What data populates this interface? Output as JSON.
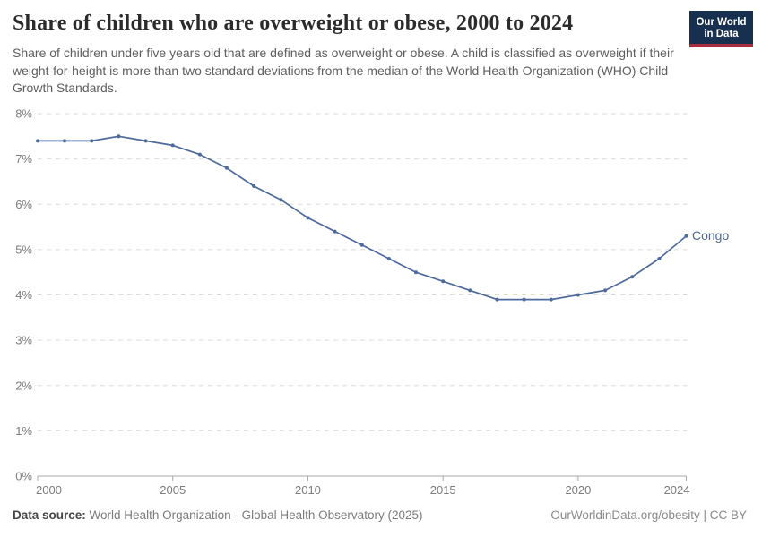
{
  "header": {
    "title": "Share of children who are overweight or obese, 2000 to 2024",
    "subtitle": "Share of children under five years old that are defined as overweight or obese. A child is classified as overweight if their weight-for-height is more than two standard deviations from the median of the World Health Organization (WHO) Child Growth Standards.",
    "logo": {
      "line1": "Our World",
      "line2": "in Data"
    }
  },
  "colors": {
    "line": "#4C6A9C",
    "grid": "#dcdcdc",
    "axis": "#a8a8a8",
    "tick_label": "#7d7d7d",
    "logo_bg": "#17304f",
    "logo_accent": "#a82d3d"
  },
  "chart_data": {
    "type": "line",
    "title": "Share of children who are overweight or obese, 2000 to 2024",
    "xlabel": "",
    "ylabel": "",
    "x": [
      2000,
      2001,
      2002,
      2003,
      2004,
      2005,
      2006,
      2007,
      2008,
      2009,
      2010,
      2011,
      2012,
      2013,
      2014,
      2015,
      2016,
      2017,
      2018,
      2019,
      2020,
      2021,
      2022,
      2023,
      2024
    ],
    "series": [
      {
        "name": "Congo",
        "color": "#4C6A9C",
        "values": [
          7.4,
          7.4,
          7.4,
          7.5,
          7.4,
          7.3,
          7.1,
          6.8,
          6.4,
          6.1,
          5.7,
          5.4,
          5.1,
          4.8,
          4.5,
          4.3,
          4.1,
          3.9,
          3.9,
          3.9,
          4.0,
          4.1,
          4.4,
          4.8,
          5.3
        ]
      }
    ],
    "end_label": "Congo",
    "xlim": [
      2000,
      2024
    ],
    "ylim": [
      0,
      8
    ],
    "x_ticks": [
      2000,
      2005,
      2010,
      2015,
      2020,
      2024
    ],
    "y_ticks": [
      0,
      1,
      2,
      3,
      4,
      5,
      6,
      7,
      8
    ],
    "y_tick_suffix": "%",
    "grid": "horizontal-dashed",
    "legend_position": "end-of-line-label"
  },
  "footer": {
    "datasource_label": "Data source:",
    "datasource_value": "World Health Organization - Global Health Observatory (2025)",
    "credit": "OurWorldinData.org/obesity | CC BY"
  }
}
